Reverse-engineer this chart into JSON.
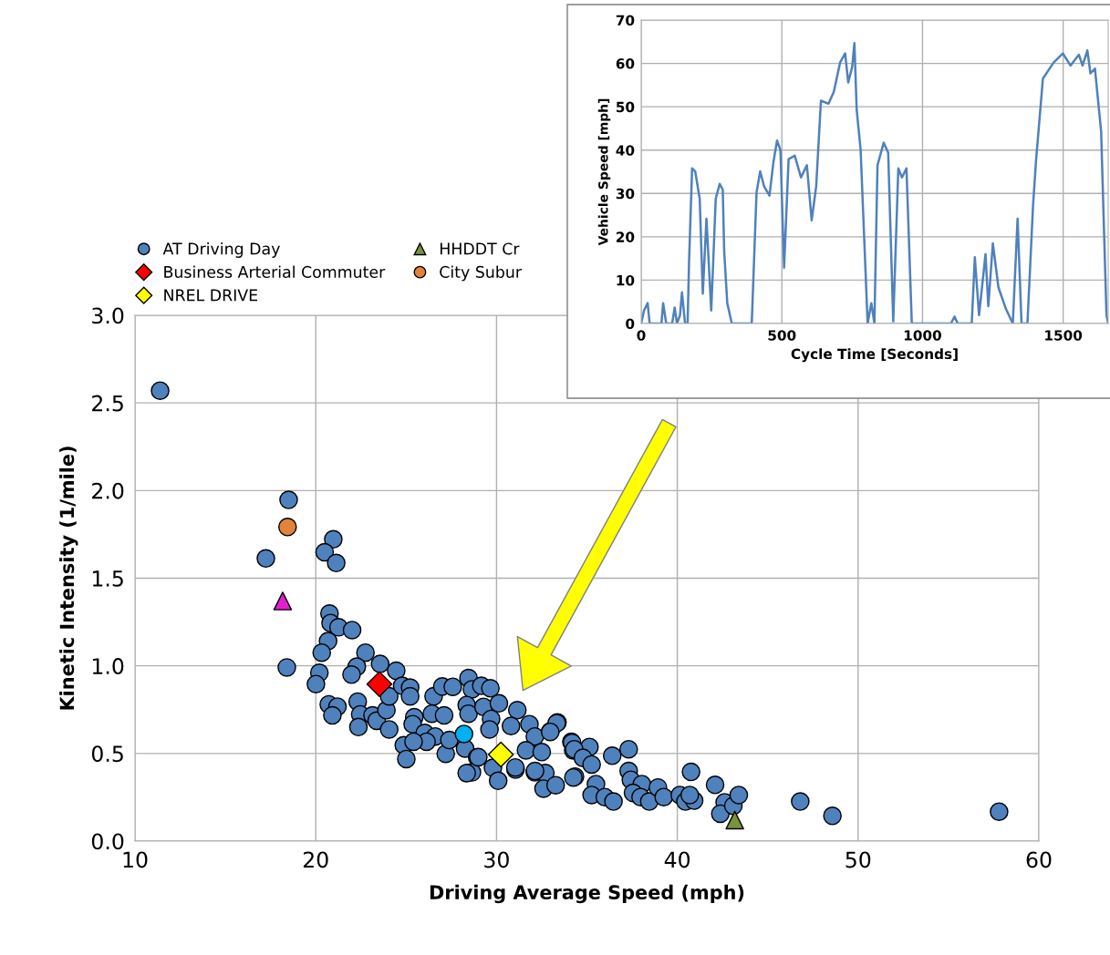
{
  "chart_data": [
    {
      "type": "scatter",
      "xlabel": "Driving Average Speed (mph)",
      "ylabel": "Kinetic Intensity (1/mile)",
      "xlim": [
        10,
        60
      ],
      "xticks": [
        10,
        20,
        30,
        40,
        50,
        60
      ],
      "ylim": [
        0,
        3
      ],
      "yticks": [
        {
          "value": 0,
          "label": "0.0"
        },
        {
          "value": 0.5,
          "label": "0.5"
        },
        {
          "value": 1,
          "label": "1.0"
        },
        {
          "value": 1.5,
          "label": "1.5"
        },
        {
          "value": 2,
          "label": "2.0"
        },
        {
          "value": 2.5,
          "label": "2.5"
        },
        {
          "value": 3,
          "label": "3.0"
        }
      ],
      "grid": true,
      "legend": "top",
      "series": [
        {
          "name": "AT Driving Day",
          "color": "#4f81bd",
          "marker": "circle",
          "x": [
            11.39,
            18.5,
            17.24,
            20.97,
            20.49,
            21.13,
            20.76,
            20.82,
            21.26,
            22.01,
            20.68,
            20.33,
            22.75,
            18.4,
            20.2,
            20.01,
            22.27,
            21.98,
            23.56,
            24.45,
            20.72,
            21.2,
            20.92,
            22.32,
            22.46,
            22.36,
            23.14,
            23.37,
            23.91,
            24.06,
            24.06,
            24.78,
            25.22,
            25.22,
            26.52,
            27.0,
            27.58,
            28.45,
            28.64,
            29.16,
            29.66,
            26.42,
            27.1,
            25.45,
            25.36,
            26.03,
            26.61,
            26.13,
            24.87,
            25.41,
            25.01,
            27.19,
            27.39,
            28.35,
            28.45,
            29.28,
            30.13,
            29.7,
            29.61,
            28.26,
            28.93,
            28.64,
            28.35,
            29.8,
            30.09,
            31.15,
            31.05,
            31.82,
            32.12,
            31.63,
            32.5,
            32.12,
            32.7,
            32.6,
            33.27,
            32.98,
            33.37,
            34.14,
            34.24,
            34.34,
            30.8,
            33.33,
            32.97,
            34.18,
            35.14,
            34.3,
            34.78,
            35.26,
            34.25,
            35.5,
            35.26,
            35.99,
            36.47,
            36.4,
            37.31,
            37.31,
            37.43,
            38.04,
            37.55,
            37.97,
            38.45,
            38.93,
            39.25,
            40.14,
            40.45,
            40.76,
            40.93,
            40.69,
            42.09,
            42.62,
            42.38,
            43.1,
            43.4,
            46.8,
            48.58,
            57.8,
            32.13,
            31.04,
            28.99
          ],
          "values": [
            2.57,
            1.947,
            1.613,
            1.722,
            1.648,
            1.587,
            1.298,
            1.244,
            1.22,
            1.204,
            1.141,
            1.075,
            1.075,
            0.991,
            0.96,
            0.896,
            0.995,
            0.95,
            1.011,
            0.972,
            0.78,
            0.767,
            0.717,
            0.796,
            0.723,
            0.651,
            0.717,
            0.687,
            0.747,
            0.826,
            0.637,
            0.886,
            0.876,
            0.826,
            0.826,
            0.882,
            0.88,
            0.93,
            0.866,
            0.886,
            0.872,
            0.727,
            0.717,
            0.707,
            0.667,
            0.617,
            0.597,
            0.567,
            0.547,
            0.567,
            0.468,
            0.498,
            0.577,
            0.776,
            0.727,
            0.766,
            0.786,
            0.697,
            0.637,
            0.528,
            0.478,
            0.392,
            0.388,
            0.418,
            0.344,
            0.747,
            0.408,
            0.667,
            0.597,
            0.518,
            0.508,
            0.392,
            0.388,
            0.299,
            0.319,
            0.627,
            0.677,
            0.567,
            0.518,
            0.368,
            0.657,
            0.673,
            0.623,
            0.561,
            0.537,
            0.524,
            0.475,
            0.437,
            0.363,
            0.325,
            0.263,
            0.251,
            0.226,
            0.487,
            0.524,
            0.4,
            0.35,
            0.325,
            0.275,
            0.251,
            0.226,
            0.306,
            0.251,
            0.263,
            0.226,
            0.395,
            0.231,
            0.263,
            0.321,
            0.221,
            0.156,
            0.201,
            0.263,
            0.226,
            0.144,
            0.168,
            0.4,
            0.42,
            0.479
          ]
        },
        {
          "name": "Business Arterial Commuter",
          "color": "#ff0000",
          "marker": "diamond",
          "x": [
            23.52
          ],
          "values": [
            0.896
          ]
        },
        {
          "name": "NREL DRIVE",
          "color": "#ffff00",
          "marker": "diamond",
          "x": [
            30.24
          ],
          "values": [
            0.494
          ]
        },
        {
          "name": "HHDDT Cr",
          "color": "#77933c",
          "marker": "triangle",
          "x": [
            43.18
          ],
          "values": [
            0.12
          ]
        },
        {
          "name": "City Subur",
          "color": "#e0843c",
          "marker": "circle",
          "x": [
            18.44
          ],
          "values": [
            1.792
          ]
        },
        {
          "color": "#e41ed0",
          "marker": "triangle",
          "x": [
            18.17
          ],
          "values": [
            1.37
          ]
        },
        {
          "color": "#00b0f0",
          "marker": "circle",
          "x": [
            28.2
          ],
          "values": [
            0.611
          ]
        }
      ]
    },
    {
      "type": "line",
      "xlabel": "Cycle Time [Seconds]",
      "ylabel": "Vehicle Speed [mph]",
      "xlim": [
        0,
        1660
      ],
      "xticks": [
        0,
        500,
        1000,
        1500
      ],
      "ylim": [
        0,
        70
      ],
      "yticks": [
        0,
        10,
        20,
        30,
        40,
        50,
        60,
        70
      ],
      "grid": true,
      "marker": "none",
      "series": [
        {
          "color": "#4f81bd",
          "x": [
            0,
            10,
            23,
            30,
            72,
            78,
            89,
            110,
            119,
            127,
            138,
            145,
            156,
            165,
            170,
            181,
            192,
            208,
            219,
            232,
            249,
            265,
            279,
            290,
            295,
            306,
            322,
            393,
            410,
            423,
            437,
            456,
            470,
            483,
            495,
            508,
            524,
            546,
            568,
            589,
            606,
            622,
            639,
            666,
            685,
            707,
            725,
            736,
            750,
            758,
            766,
            780,
            805,
            818,
            829,
            840,
            862,
            878,
            896,
            914,
            927,
            943,
            962,
            1101,
            1114,
            1125,
            1175,
            1186,
            1201,
            1224,
            1234,
            1250,
            1270,
            1297,
            1321,
            1338,
            1352,
            1373,
            1393,
            1404,
            1428,
            1466,
            1499,
            1526,
            1556,
            1569,
            1586,
            1597,
            1613,
            1635,
            1654,
            1660
          ],
          "values": [
            0,
            3,
            4.7,
            0,
            0,
            4.7,
            0,
            0,
            3.7,
            0,
            1.9,
            7.2,
            0,
            0,
            13.9,
            35.8,
            35.1,
            28.8,
            6.9,
            24.2,
            3,
            28.8,
            32.2,
            30.9,
            16.7,
            4.7,
            0,
            0,
            30.2,
            35.1,
            31.6,
            29.5,
            37.2,
            42.2,
            40,
            12.9,
            37.9,
            38.7,
            33.7,
            36.5,
            23.8,
            31.6,
            51.4,
            50.7,
            53.5,
            60.2,
            62.3,
            55.6,
            59.2,
            64.7,
            49.3,
            40.1,
            0,
            4.7,
            0,
            36.5,
            41.7,
            39.4,
            0.5,
            35.8,
            33.7,
            35.8,
            0,
            0,
            1.6,
            0,
            0,
            15.3,
            1.9,
            16,
            4,
            18.5,
            8.3,
            3.3,
            0,
            24.2,
            0,
            0,
            27.3,
            37.9,
            56.5,
            60.2,
            62.3,
            59.5,
            62,
            59.5,
            63,
            57.7,
            58.8,
            44.3,
            1.9,
            0
          ]
        }
      ]
    }
  ]
}
